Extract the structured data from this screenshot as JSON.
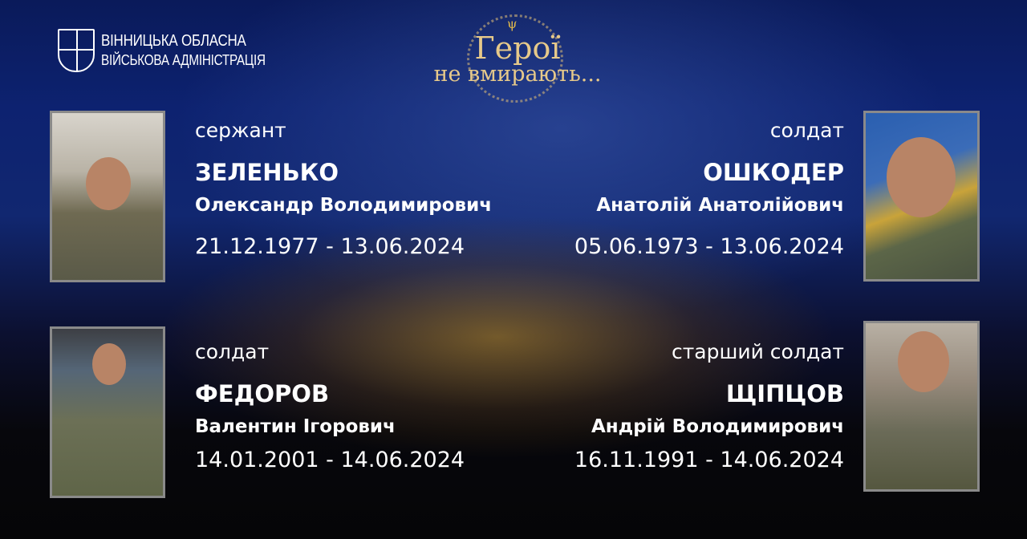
{
  "header": {
    "org_line1": "ВІННИЦЬКА ОБЛАСНА",
    "org_line2": "ВІЙСЬКОВА АДМІНІСТРАЦІЯ",
    "motto_line1": "Герої",
    "motto_line2": "не вмирають..."
  },
  "heroes": [
    {
      "rank": "сержант",
      "surname": "ЗЕЛЕНЬКО",
      "name": "Олександр Володимирович",
      "dates": "21.12.1977 - 13.06.2024"
    },
    {
      "rank": "солдат",
      "surname": "ОШКОДЕР",
      "name": "Анатолій Анатолійович",
      "dates": "05.06.1973 - 13.06.2024"
    },
    {
      "rank": "солдат",
      "surname": "ФЕДОРОВ",
      "name": "Валентин Ігорович",
      "dates": "14.01.2001 - 14.06.2024"
    },
    {
      "rank": "старший солдат",
      "surname": "ЩІПЦОВ",
      "name": "Андрій Володимирович",
      "dates": "16.11.1991 - 14.06.2024"
    }
  ]
}
